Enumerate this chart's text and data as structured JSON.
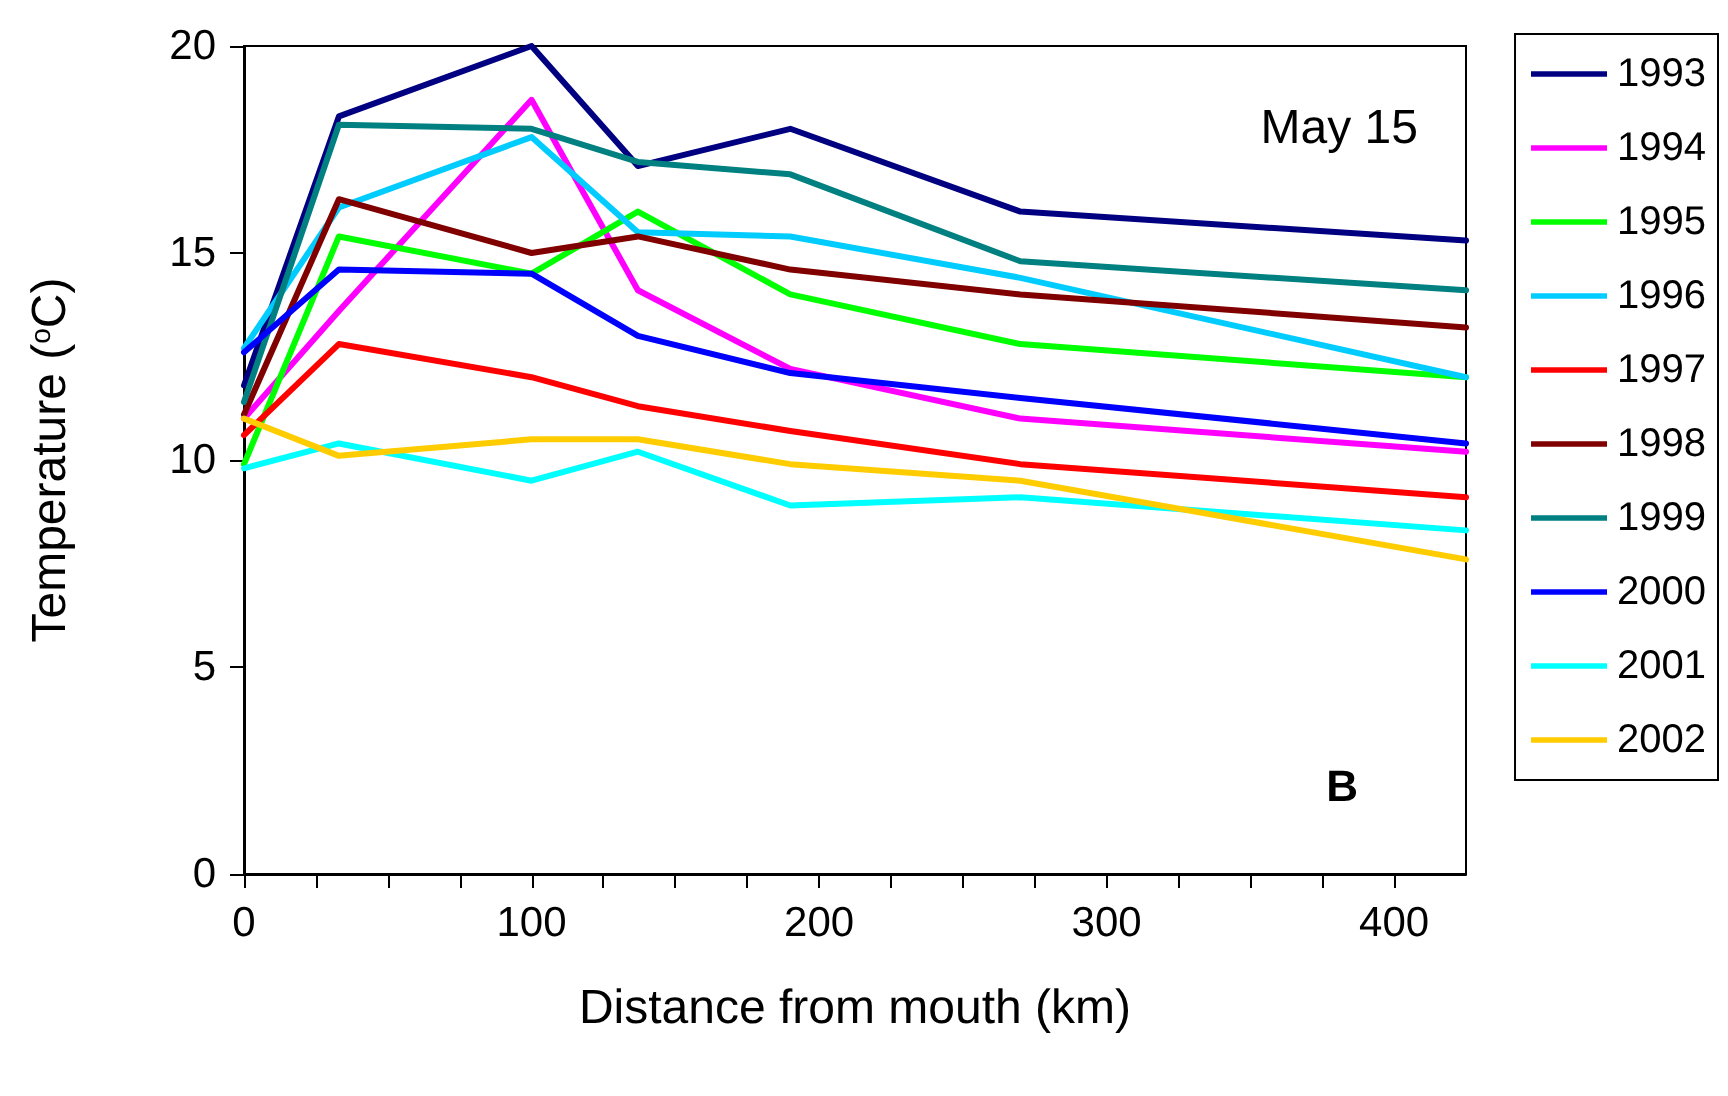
{
  "chart_data": {
    "type": "line",
    "xlabel": "Distance from mouth (km)",
    "ylabel": "Temperature ($^{o}$C)",
    "x": [
      0,
      33,
      100,
      137,
      190,
      270,
      425
    ],
    "series": [
      {
        "name": "1993",
        "color": "#000080",
        "values": [
          11.8,
          18.3,
          20.0,
          17.1,
          18.0,
          16.0,
          15.3
        ]
      },
      {
        "name": "1994",
        "color": "#ff00ff",
        "values": [
          11.0,
          13.6,
          18.7,
          14.1,
          12.2,
          11.0,
          10.2
        ]
      },
      {
        "name": "1995",
        "color": "#00ff00",
        "values": [
          9.9,
          15.4,
          14.5,
          16.0,
          14.0,
          12.8,
          12.0
        ]
      },
      {
        "name": "1996",
        "color": "#00ccff",
        "values": [
          12.7,
          16.1,
          17.8,
          15.5,
          15.4,
          14.4,
          12.0
        ]
      },
      {
        "name": "1997",
        "color": "#ff0000",
        "values": [
          10.6,
          12.8,
          12.0,
          11.3,
          10.7,
          9.9,
          9.1
        ]
      },
      {
        "name": "1998",
        "color": "#800000",
        "values": [
          11.1,
          16.3,
          15.0,
          15.4,
          14.6,
          14.0,
          13.2
        ]
      },
      {
        "name": "1999",
        "color": "#008080",
        "values": [
          11.4,
          18.1,
          18.0,
          17.2,
          16.9,
          14.8,
          14.1
        ]
      },
      {
        "name": "2000",
        "color": "#0000ff",
        "values": [
          12.6,
          14.6,
          14.5,
          13.0,
          12.1,
          11.5,
          10.4
        ]
      },
      {
        "name": "2001",
        "color": "#00ffff",
        "values": [
          9.8,
          10.4,
          9.5,
          10.2,
          8.9,
          9.1,
          8.3
        ]
      },
      {
        "name": "2002",
        "color": "#ffcc00",
        "values": [
          11.0,
          10.1,
          10.5,
          10.5,
          9.9,
          9.5,
          7.6
        ]
      }
    ],
    "xlim": [
      0,
      425
    ],
    "xticks": [
      0,
      {
        "value": 25,
        "label": null
      },
      {
        "value": 50,
        "label": null
      },
      {
        "value": 75,
        "label": null
      },
      100,
      {
        "value": 125,
        "label": null
      },
      {
        "value": 150,
        "label": null
      },
      {
        "value": 175,
        "label": null
      },
      200,
      {
        "value": 225,
        "label": null
      },
      {
        "value": 250,
        "label": null
      },
      {
        "value": 275,
        "label": null
      },
      300,
      {
        "value": 325,
        "label": null
      },
      {
        "value": 350,
        "label": null
      },
      {
        "value": 375,
        "label": null
      },
      400
    ],
    "ylim": [
      0,
      20
    ],
    "yticks": [
      0,
      5,
      10,
      15,
      20
    ],
    "grid": false,
    "legend": "right",
    "marker": "none",
    "line_style": "solid",
    "annotations": [
      "May 15",
      "B"
    ]
  }
}
